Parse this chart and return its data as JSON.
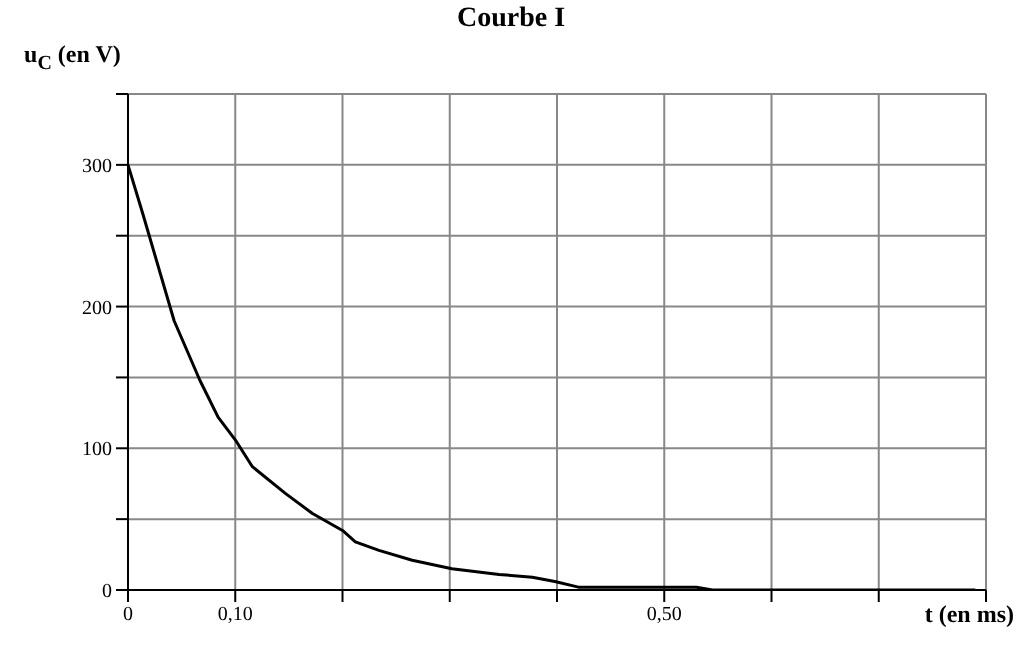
{
  "chart_data": {
    "type": "line",
    "title": "Courbe I",
    "xlabel": "t (en ms)",
    "ylabel": "u$_{C}$ (en V)",
    "x": [
      0,
      0.014,
      0.043,
      0.067,
      0.084,
      0.1,
      0.116,
      0.147,
      0.172,
      0.2,
      0.212,
      0.234,
      0.265,
      0.302,
      0.346,
      0.377,
      0.398,
      0.42,
      0.5,
      0.53,
      0.545,
      0.79
    ],
    "series": [
      {
        "color": "#000000",
        "values": [
          300,
          265,
          190,
          148,
          122,
          106,
          87,
          68,
          54,
          42,
          34,
          28,
          21,
          15,
          11,
          9,
          6,
          2,
          2,
          2,
          0,
          0
        ]
      }
    ],
    "xlim": [
      0,
      0.8
    ],
    "ylim": [
      0,
      350
    ],
    "xticks": [
      0,
      {
        "value": 0.1,
        "label": "0,10"
      },
      {
        "value": 0.2,
        "label": null
      },
      {
        "value": 0.3,
        "label": null
      },
      {
        "value": 0.4,
        "label": null
      },
      {
        "value": 0.5,
        "label": "0,50"
      },
      {
        "value": 0.6,
        "label": null
      },
      {
        "value": 0.7,
        "label": null
      },
      {
        "value": 0.8,
        "label": null
      }
    ],
    "yticks": [
      0,
      {
        "value": 50,
        "label": null
      },
      100,
      {
        "value": 150,
        "label": null
      },
      200,
      {
        "value": 250,
        "label": null
      },
      300,
      {
        "value": 350,
        "label": null
      }
    ],
    "grid": true,
    "legend": false,
    "marker": "none",
    "line_style": "solid"
  }
}
